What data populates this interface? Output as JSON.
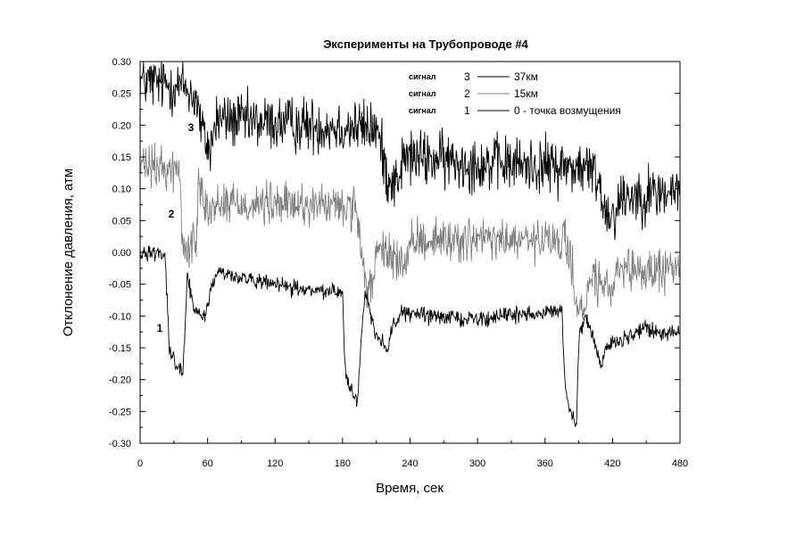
{
  "chart_data": {
    "type": "line",
    "title": "Эксперименты на Трубопроводе #4",
    "xlabel": "Время, сек",
    "ylabel": "Отклонение давления, атм",
    "xlim": [
      0,
      480
    ],
    "ylim": [
      -0.3,
      0.3
    ],
    "x_ticks": [
      "0",
      "60",
      "120",
      "180",
      "240",
      "300",
      "360",
      "420",
      "480"
    ],
    "y_ticks": [
      "0.30",
      "0.25",
      "0.20",
      "0.15",
      "0.10",
      "0.05",
      "0.00",
      "-0.05",
      "-0.10",
      "-0.15",
      "-0.20",
      "-0.25",
      "-0.30"
    ],
    "grid": false,
    "legend_position": "top-right",
    "legend": [
      {
        "prefix": "сигнал",
        "num": "3",
        "desc": "37км",
        "color": "#000000"
      },
      {
        "prefix": "сигнал",
        "num": "2",
        "desc": "15км",
        "color": "#808080"
      },
      {
        "prefix": "сигнал",
        "num": "1",
        "desc": "0 - точка возмущения",
        "color": "#000000"
      }
    ],
    "series": [
      {
        "label": "3",
        "color": "#000000",
        "noise": 0.022,
        "points": [
          [
            0,
            0.27
          ],
          [
            40,
            0.26
          ],
          [
            50,
            0.24
          ],
          [
            55,
            0.19
          ],
          [
            62,
            0.16
          ],
          [
            68,
            0.21
          ],
          [
            95,
            0.205
          ],
          [
            150,
            0.2
          ],
          [
            210,
            0.195
          ],
          [
            215,
            0.16
          ],
          [
            220,
            0.12
          ],
          [
            228,
            0.11
          ],
          [
            235,
            0.15
          ],
          [
            300,
            0.14
          ],
          [
            380,
            0.135
          ],
          [
            400,
            0.13
          ],
          [
            408,
            0.115
          ],
          [
            412,
            0.07
          ],
          [
            420,
            0.06
          ],
          [
            430,
            0.09
          ],
          [
            480,
            0.095
          ]
        ]
      },
      {
        "label": "2",
        "color": "#808080",
        "noise": 0.017,
        "points": [
          [
            0,
            0.135
          ],
          [
            35,
            0.13
          ],
          [
            37,
            0.03
          ],
          [
            40,
            0.0
          ],
          [
            45,
            0.015
          ],
          [
            50,
            0.01
          ],
          [
            52,
            0.13
          ],
          [
            57,
            0.09
          ],
          [
            62,
            0.06
          ],
          [
            70,
            0.08
          ],
          [
            100,
            0.075
          ],
          [
            150,
            0.075
          ],
          [
            190,
            0.07
          ],
          [
            195,
            0.02
          ],
          [
            200,
            -0.05
          ],
          [
            205,
            -0.06
          ],
          [
            210,
            -0.005
          ],
          [
            220,
            0.0
          ],
          [
            235,
            -0.02
          ],
          [
            245,
            0.02
          ],
          [
            300,
            0.02
          ],
          [
            380,
            0.015
          ],
          [
            385,
            -0.04
          ],
          [
            390,
            -0.09
          ],
          [
            395,
            -0.1
          ],
          [
            398,
            -0.06
          ],
          [
            402,
            -0.035
          ],
          [
            410,
            -0.055
          ],
          [
            418,
            -0.06
          ],
          [
            425,
            -0.035
          ],
          [
            480,
            -0.025
          ]
        ]
      },
      {
        "label": "1",
        "color": "#000000",
        "noise": 0.006,
        "points": [
          [
            0,
            0.0
          ],
          [
            22,
            0.0
          ],
          [
            24,
            -0.07
          ],
          [
            26,
            -0.15
          ],
          [
            30,
            -0.17
          ],
          [
            38,
            -0.19
          ],
          [
            40,
            -0.12
          ],
          [
            42,
            -0.04
          ],
          [
            48,
            -0.09
          ],
          [
            58,
            -0.1
          ],
          [
            63,
            -0.055
          ],
          [
            70,
            -0.03
          ],
          [
            100,
            -0.045
          ],
          [
            150,
            -0.06
          ],
          [
            180,
            -0.06
          ],
          [
            182,
            -0.18
          ],
          [
            186,
            -0.21
          ],
          [
            193,
            -0.24
          ],
          [
            196,
            -0.155
          ],
          [
            200,
            -0.06
          ],
          [
            210,
            -0.13
          ],
          [
            220,
            -0.15
          ],
          [
            224,
            -0.12
          ],
          [
            232,
            -0.095
          ],
          [
            260,
            -0.1
          ],
          [
            300,
            -0.105
          ],
          [
            375,
            -0.09
          ],
          [
            378,
            -0.22
          ],
          [
            382,
            -0.25
          ],
          [
            388,
            -0.27
          ],
          [
            390,
            -0.14
          ],
          [
            395,
            -0.1
          ],
          [
            400,
            -0.12
          ],
          [
            410,
            -0.18
          ],
          [
            415,
            -0.15
          ],
          [
            420,
            -0.14
          ],
          [
            440,
            -0.13
          ],
          [
            450,
            -0.115
          ],
          [
            460,
            -0.13
          ],
          [
            480,
            -0.125
          ]
        ]
      }
    ]
  }
}
